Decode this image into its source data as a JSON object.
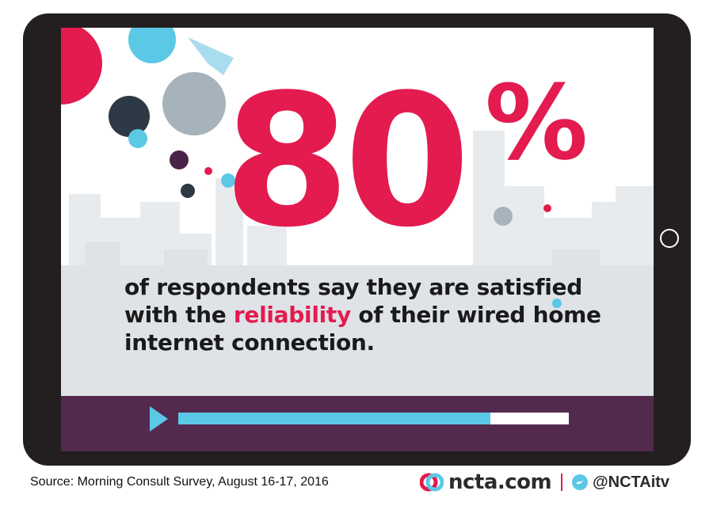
{
  "stat": {
    "number": "80",
    "unit": "%"
  },
  "caption": {
    "before": "of respondents say they are satisfied with the ",
    "highlight": "reliability",
    "after": " of their wired home internet connection."
  },
  "player": {
    "progress_percent": 80,
    "play_icon": "play-icon"
  },
  "footer": {
    "source": "Source: Morning Consult Survey, August 16-17, 2016",
    "site": "ncta.com",
    "handle": "@NCTAitv",
    "icons": [
      "ncta-logo-icon",
      "twitter-bird-icon"
    ]
  },
  "colors": {
    "accent": "#e31b4f",
    "blue": "#5bc8e6",
    "purple": "#53294d",
    "frame": "#231f20"
  }
}
